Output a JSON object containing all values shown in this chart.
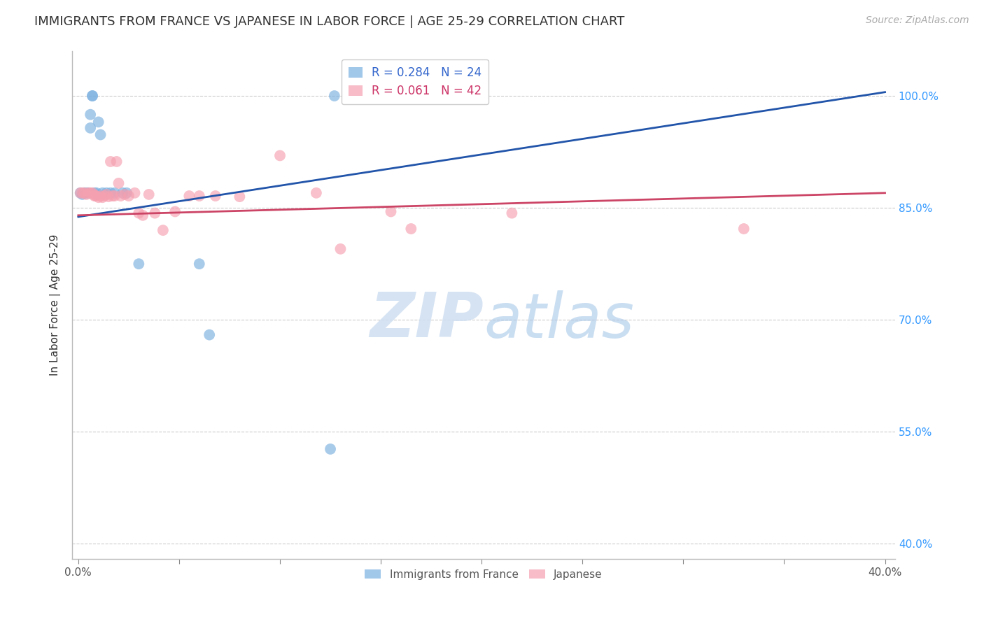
{
  "title": "IMMIGRANTS FROM FRANCE VS JAPANESE IN LABOR FORCE | AGE 25-29 CORRELATION CHART",
  "source": "Source: ZipAtlas.com",
  "ylabel": "In Labor Force | Age 25-29",
  "france_R": 0.284,
  "france_N": 24,
  "japanese_R": 0.061,
  "japanese_N": 42,
  "france_color": "#7ab0e0",
  "japanese_color": "#f5a0b0",
  "france_line_color": "#2255aa",
  "japanese_line_color": "#cc4466",
  "watermark_color": "#ccddf0",
  "background_color": "#ffffff",
  "grid_color": "#cccccc",
  "france_scatter_x": [
    0.001,
    0.002,
    0.003,
    0.004,
    0.005,
    0.006,
    0.006,
    0.007,
    0.007,
    0.008,
    0.009,
    0.01,
    0.011,
    0.012,
    0.014,
    0.016,
    0.018,
    0.022,
    0.024,
    0.03,
    0.06,
    0.065,
    0.125,
    0.127
  ],
  "france_scatter_y": [
    0.87,
    0.868,
    0.87,
    0.87,
    0.87,
    0.975,
    0.957,
    1.0,
    1.0,
    0.87,
    0.87,
    0.965,
    0.948,
    0.87,
    0.87,
    0.87,
    0.87,
    0.87,
    0.87,
    0.775,
    0.775,
    0.68,
    0.527,
    1.0
  ],
  "japanese_scatter_x": [
    0.001,
    0.002,
    0.003,
    0.004,
    0.005,
    0.006,
    0.007,
    0.008,
    0.008,
    0.009,
    0.01,
    0.011,
    0.012,
    0.013,
    0.014,
    0.015,
    0.016,
    0.017,
    0.018,
    0.019,
    0.02,
    0.021,
    0.023,
    0.025,
    0.028,
    0.03,
    0.032,
    0.035,
    0.038,
    0.042,
    0.048,
    0.055,
    0.06,
    0.068,
    0.08,
    0.1,
    0.118,
    0.13,
    0.155,
    0.165,
    0.215,
    0.33
  ],
  "japanese_scatter_y": [
    0.87,
    0.87,
    0.87,
    0.868,
    0.87,
    0.87,
    0.87,
    0.867,
    0.866,
    0.866,
    0.864,
    0.866,
    0.864,
    0.866,
    0.868,
    0.865,
    0.912,
    0.866,
    0.866,
    0.912,
    0.883,
    0.866,
    0.868,
    0.866,
    0.87,
    0.843,
    0.84,
    0.868,
    0.843,
    0.82,
    0.845,
    0.866,
    0.866,
    0.866,
    0.865,
    0.92,
    0.87,
    0.795,
    0.845,
    0.822,
    0.843,
    0.822
  ],
  "france_line_x0": 0.0,
  "france_line_x1": 0.4,
  "france_line_y0": 0.838,
  "france_line_y1": 1.005,
  "japanese_line_x0": 0.0,
  "japanese_line_x1": 0.4,
  "japanese_line_y0": 0.84,
  "japanese_line_y1": 0.87,
  "xlim_min": -0.003,
  "xlim_max": 0.405,
  "ylim_min": 0.38,
  "ylim_max": 1.06,
  "xtick_positions": [
    0.0,
    0.05,
    0.1,
    0.15,
    0.2,
    0.25,
    0.3,
    0.35,
    0.4
  ],
  "xtick_labels": [
    "0.0%",
    "",
    "",
    "",
    "",
    "",
    "",
    "",
    "40.0%"
  ],
  "ytick_positions": [
    0.4,
    0.55,
    0.7,
    0.85,
    1.0
  ],
  "ytick_labels": [
    "40.0%",
    "55.0%",
    "70.0%",
    "85.0%",
    "100.0%"
  ],
  "title_fontsize": 13,
  "axis_fontsize": 11,
  "source_fontsize": 10
}
